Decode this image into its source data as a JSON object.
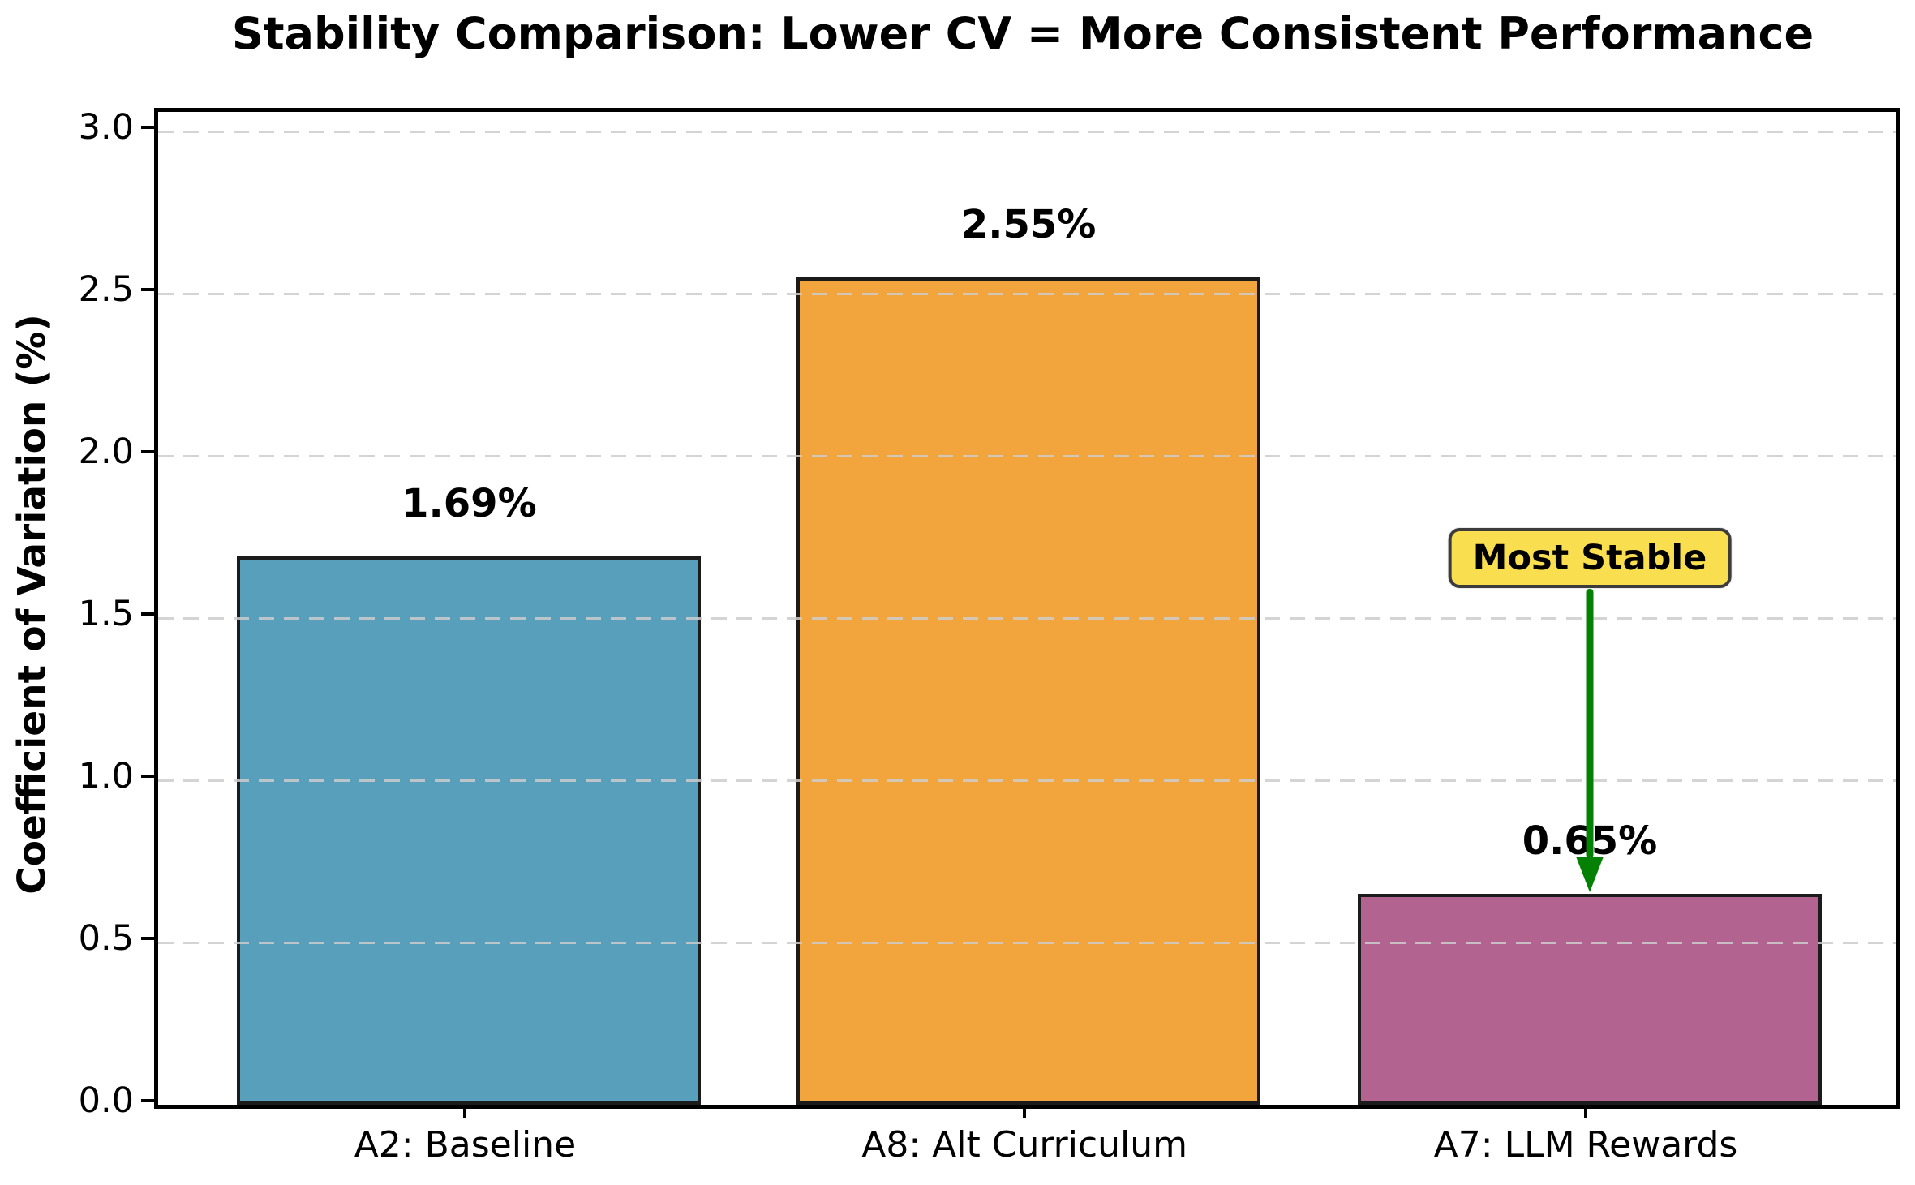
{
  "chart_data": {
    "type": "bar",
    "title": "Stability Comparison: Lower CV = More Consistent Performance",
    "xlabel": "",
    "ylabel": "Coefficient of Variation (%)",
    "categories": [
      "A2: Baseline",
      "A8: Alt Curriculum",
      "A7: LLM Rewards"
    ],
    "values": [
      1.69,
      2.55,
      0.65
    ],
    "value_labels": [
      "1.69%",
      "2.55%",
      "0.65%"
    ],
    "bar_colors": [
      "#579fba",
      "#f2a53c",
      "#b2638f"
    ],
    "bar_edge_color": "#1b1b1b",
    "ylim": [
      0.0,
      3.06
    ],
    "ytick_values": [
      0.0,
      0.5,
      1.0,
      1.5,
      2.0,
      2.5,
      3.0
    ],
    "ytick_labels": [
      "0.0",
      "0.5",
      "1.0",
      "1.5",
      "2.0",
      "2.5",
      "3.0"
    ],
    "grid": "horizontal-dashed",
    "grid_color": "#cdcdcd",
    "legend": "none",
    "annotation": {
      "text": "Most Stable",
      "target_category": "A7: LLM Rewards",
      "target_value": 0.65,
      "box_color": "#f9df4f",
      "arrow_color": "#048104"
    }
  }
}
